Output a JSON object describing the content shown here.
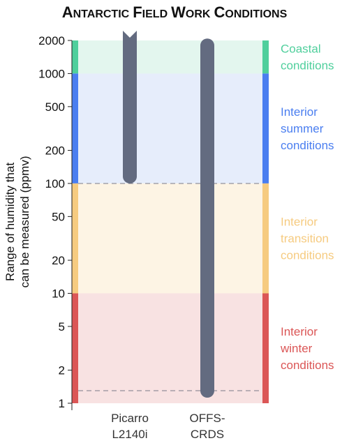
{
  "chart_data": {
    "type": "range-bar",
    "title": "Antarctic field work conditions",
    "ylabel_lines": [
      "Range of humidity that",
      "can be measured (ppmv)"
    ],
    "yscale": "log",
    "ylim": [
      1,
      2000
    ],
    "yticks": [
      1,
      2,
      5,
      10,
      20,
      50,
      100,
      200,
      500,
      1000,
      2000
    ],
    "zones": [
      {
        "lines": [
          "Coastal",
          "conditions"
        ],
        "range": [
          1000,
          2000
        ],
        "color": "#4fcf9c",
        "fill": "#e3f6ee"
      },
      {
        "lines": [
          "Interior",
          "summer",
          "conditions"
        ],
        "range": [
          100,
          1000
        ],
        "color": "#4a7ef0",
        "fill": "#e6edfb"
      },
      {
        "lines": [
          "Interior",
          "transition",
          "conditions"
        ],
        "range": [
          10,
          100
        ],
        "color": "#f6cb80",
        "fill": "#fdf4e4"
      },
      {
        "lines": [
          "Interior",
          "winter",
          "conditions"
        ],
        "range": [
          1,
          10
        ],
        "color": "#db5656",
        "fill": "#f8e2e2"
      }
    ],
    "instruments": [
      {
        "lines": [
          "Picarro",
          "L2140i"
        ],
        "range": [
          100,
          2000
        ],
        "open_top": true
      },
      {
        "lines": [
          "OFFS-",
          "CRDS"
        ],
        "range": [
          1.3,
          1800
        ],
        "open_top": false
      }
    ],
    "reference_lines": [
      100,
      1.3
    ],
    "bar_color": "#636b80"
  }
}
